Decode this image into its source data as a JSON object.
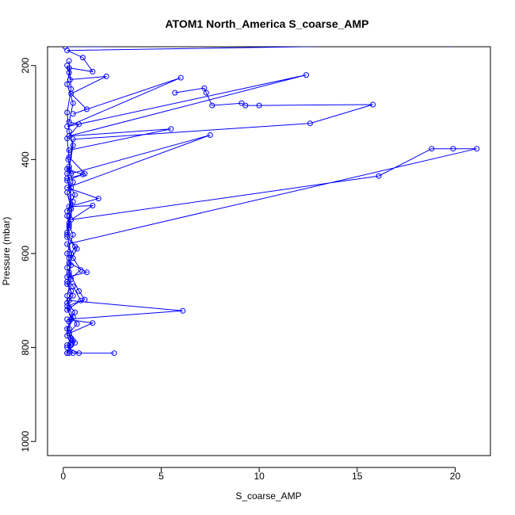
{
  "chart_data": {
    "type": "scatter",
    "title": "ATOM1 North_America S_coarse_AMP",
    "xlabel": "S_coarse_AMP",
    "ylabel": "Pressure (mbar)",
    "xlim": [
      -0.8,
      21.8
    ],
    "ylim": [
      1030,
      160
    ],
    "y_reversed": true,
    "grid": false,
    "series_color": "#0000ff",
    "x_ticks": [
      0,
      5,
      10,
      15,
      20
    ],
    "y_ticks": [
      200,
      400,
      600,
      800,
      1000
    ],
    "series": [
      {
        "values": [
          [
            0.1,
            160
          ],
          [
            19.7,
            155
          ],
          [
            0.2,
            168
          ],
          [
            1.0,
            183
          ],
          [
            1.5,
            213
          ],
          [
            0.3,
            205
          ],
          [
            0.35,
            230
          ],
          [
            2.2,
            223
          ],
          [
            0.4,
            260
          ],
          [
            1.2,
            293
          ],
          [
            0.5,
            303
          ],
          [
            6.0,
            226
          ],
          [
            0.2,
            330
          ],
          [
            12.4,
            220
          ],
          [
            0.3,
            350
          ],
          [
            5.5,
            335
          ],
          [
            0.3,
            380
          ],
          [
            0.25,
            400
          ],
          [
            0.4,
            430
          ],
          [
            7.5,
            348
          ],
          [
            0.2,
            460
          ],
          [
            1.8,
            483
          ],
          [
            0.3,
            500
          ],
          [
            1.5,
            498
          ],
          [
            0.4,
            528
          ],
          [
            16.1,
            435
          ],
          [
            18.8,
            377
          ],
          [
            19.9,
            377
          ],
          [
            21.1,
            377
          ],
          [
            0.2,
            580
          ],
          [
            0.5,
            610
          ],
          [
            0.9,
            635
          ],
          [
            0.2,
            660
          ],
          [
            0.4,
            680
          ],
          [
            0.3,
            700
          ],
          [
            6.1,
            722
          ],
          [
            0.2,
            740
          ],
          [
            1.5,
            748
          ],
          [
            0.3,
            770
          ],
          [
            0.4,
            790
          ],
          [
            0.2,
            812
          ],
          [
            2.6,
            812
          ]
        ]
      },
      {
        "values": [
          [
            0.2,
            200
          ],
          [
            0.3,
            215
          ],
          [
            0.2,
            240
          ],
          [
            0.5,
            280
          ],
          [
            0.3,
            320
          ],
          [
            0.8,
            325
          ],
          [
            0.2,
            355
          ],
          [
            0.3,
            395
          ],
          [
            1.1,
            430
          ],
          [
            0.2,
            445
          ],
          [
            0.6,
            475
          ],
          [
            0.2,
            510
          ],
          [
            0.5,
            490
          ],
          [
            0.3,
            545
          ],
          [
            0.2,
            565
          ],
          [
            0.7,
            590
          ],
          [
            0.3,
            620
          ],
          [
            1.2,
            640
          ],
          [
            0.2,
            650
          ],
          [
            0.5,
            670
          ],
          [
            0.9,
            700
          ],
          [
            0.2,
            720
          ],
          [
            0.7,
            750
          ],
          [
            0.3,
            770
          ],
          [
            0.5,
            785
          ],
          [
            0.2,
            800
          ],
          [
            0.8,
            812
          ]
        ]
      },
      {
        "values": [
          [
            5.7,
            258
          ],
          [
            7.2,
            248
          ],
          [
            7.3,
            258
          ],
          [
            7.6,
            285
          ],
          [
            9.1,
            280
          ],
          [
            9.3,
            285
          ],
          [
            10.0,
            285
          ],
          [
            15.8,
            283
          ],
          [
            12.6,
            323
          ],
          [
            0.5,
            357
          ],
          [
            0.3,
            415
          ],
          [
            0.2,
            430
          ],
          [
            0.4,
            460
          ],
          [
            0.3,
            520
          ],
          [
            0.2,
            560
          ],
          [
            0.4,
            600
          ],
          [
            0.3,
            640
          ],
          [
            0.8,
            680
          ],
          [
            1.1,
            698
          ],
          [
            0.2,
            712
          ],
          [
            0.4,
            740
          ],
          [
            0.3,
            760
          ],
          [
            0.6,
            790
          ],
          [
            0.2,
            812
          ]
        ]
      },
      {
        "values": [
          [
            0.3,
            190
          ],
          [
            0.4,
            250
          ],
          [
            0.2,
            300
          ],
          [
            0.3,
            340
          ],
          [
            0.5,
            370
          ],
          [
            0.3,
            420
          ],
          [
            0.5,
            448
          ],
          [
            0.2,
            470
          ],
          [
            0.4,
            505
          ],
          [
            0.3,
            535
          ],
          [
            0.2,
            555
          ],
          [
            0.6,
            585
          ],
          [
            0.3,
            610
          ],
          [
            0.2,
            630
          ],
          [
            0.4,
            655
          ],
          [
            0.2,
            690
          ],
          [
            0.3,
            715
          ],
          [
            0.5,
            735
          ],
          [
            0.2,
            760
          ],
          [
            0.4,
            780
          ],
          [
            0.2,
            795
          ],
          [
            0.5,
            812
          ]
        ]
      },
      {
        "values": [
          [
            0.2,
            420
          ],
          [
            1.0,
            432
          ],
          [
            0.2,
            440
          ],
          [
            0.4,
            480
          ],
          [
            0.2,
            520
          ],
          [
            0.3,
            540
          ],
          [
            0.5,
            560
          ],
          [
            0.2,
            600
          ],
          [
            0.4,
            625
          ],
          [
            0.3,
            645
          ],
          [
            0.2,
            665
          ],
          [
            0.5,
            690
          ],
          [
            0.2,
            705
          ],
          [
            0.6,
            725
          ],
          [
            0.3,
            745
          ],
          [
            0.2,
            775
          ],
          [
            0.4,
            795
          ],
          [
            0.3,
            812
          ]
        ]
      }
    ]
  }
}
